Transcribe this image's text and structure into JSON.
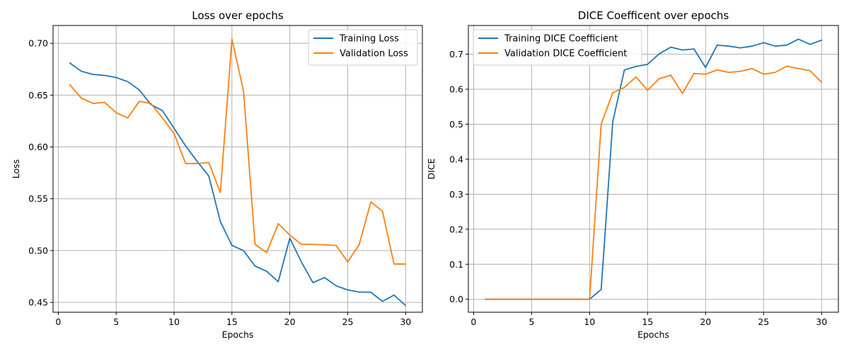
{
  "colors": {
    "training": "#1f77b4",
    "validation": "#ff7f0e"
  },
  "chart_data": [
    {
      "type": "line",
      "title": "Loss over epochs",
      "xlabel": "Epochs",
      "ylabel": "Loss",
      "xlim": [
        -0.45,
        31.45
      ],
      "ylim": [
        0.4405,
        0.7172
      ],
      "xticks": [
        0,
        5,
        10,
        15,
        20,
        25,
        30
      ],
      "yticks": [
        0.45,
        0.5,
        0.55,
        0.6,
        0.65,
        0.7
      ],
      "ytick_labels": [
        "0.45",
        "0.50",
        "0.55",
        "0.60",
        "0.65",
        "0.70"
      ],
      "grid": true,
      "legend_position": "upper right",
      "x": [
        1,
        2,
        3,
        4,
        5,
        6,
        7,
        8,
        9,
        10,
        11,
        12,
        13,
        14,
        15,
        16,
        17,
        18,
        19,
        20,
        21,
        22,
        23,
        24,
        25,
        26,
        27,
        28,
        29,
        30
      ],
      "series": [
        {
          "name": "Training Loss",
          "color": "#1f77b4",
          "values": [
            0.681,
            0.673,
            0.67,
            0.669,
            0.667,
            0.663,
            0.655,
            0.641,
            0.635,
            0.618,
            0.601,
            0.586,
            0.572,
            0.528,
            0.505,
            0.5,
            0.485,
            0.48,
            0.47,
            0.512,
            0.489,
            0.469,
            0.474,
            0.466,
            0.462,
            0.46,
            0.4598,
            0.451,
            0.457,
            0.447
          ]
        },
        {
          "name": "Validation Loss",
          "color": "#ff7f0e",
          "values": [
            0.66,
            0.647,
            0.642,
            0.643,
            0.633,
            0.628,
            0.644,
            0.642,
            0.628,
            0.613,
            0.584,
            0.584,
            0.585,
            0.556,
            0.704,
            0.654,
            0.506,
            0.498,
            0.526,
            0.515,
            0.506,
            0.506,
            0.5055,
            0.505,
            0.489,
            0.506,
            0.547,
            0.538,
            0.487,
            0.487
          ]
        }
      ]
    },
    {
      "type": "line",
      "title": "DICE Coefficent over epochs",
      "xlabel": "Epochs",
      "ylabel": "DICE",
      "xlim": [
        -0.45,
        31.45
      ],
      "ylim": [
        -0.037,
        0.782
      ],
      "xticks": [
        0,
        5,
        10,
        15,
        20,
        25,
        30
      ],
      "yticks": [
        0.0,
        0.1,
        0.2,
        0.3,
        0.4,
        0.5,
        0.6,
        0.7
      ],
      "ytick_labels": [
        "0.0",
        "0.1",
        "0.2",
        "0.3",
        "0.4",
        "0.5",
        "0.6",
        "0.7"
      ],
      "grid": true,
      "legend_position": "upper left",
      "x": [
        1,
        2,
        3,
        4,
        5,
        6,
        7,
        8,
        9,
        10,
        11,
        12,
        13,
        14,
        15,
        16,
        17,
        18,
        19,
        20,
        21,
        22,
        23,
        24,
        25,
        26,
        27,
        28,
        29,
        30
      ],
      "series": [
        {
          "name": "Training DICE Coefficient",
          "color": "#1f77b4",
          "values": [
            0,
            0,
            0,
            0,
            0,
            0,
            0,
            0,
            0,
            0,
            0.028,
            0.507,
            0.655,
            0.665,
            0.671,
            0.701,
            0.72,
            0.712,
            0.715,
            0.662,
            0.726,
            0.723,
            0.718,
            0.723,
            0.733,
            0.723,
            0.726,
            0.743,
            0.728,
            0.74
          ]
        },
        {
          "name": "Validation DICE Coefficient",
          "color": "#ff7f0e",
          "values": [
            0,
            0,
            0,
            0,
            0,
            0,
            0,
            0,
            0,
            0,
            0.5,
            0.59,
            0.605,
            0.635,
            0.597,
            0.63,
            0.64,
            0.588,
            0.645,
            0.643,
            0.655,
            0.648,
            0.651,
            0.659,
            0.643,
            0.648,
            0.666,
            0.659,
            0.653,
            0.62
          ]
        }
      ]
    }
  ]
}
